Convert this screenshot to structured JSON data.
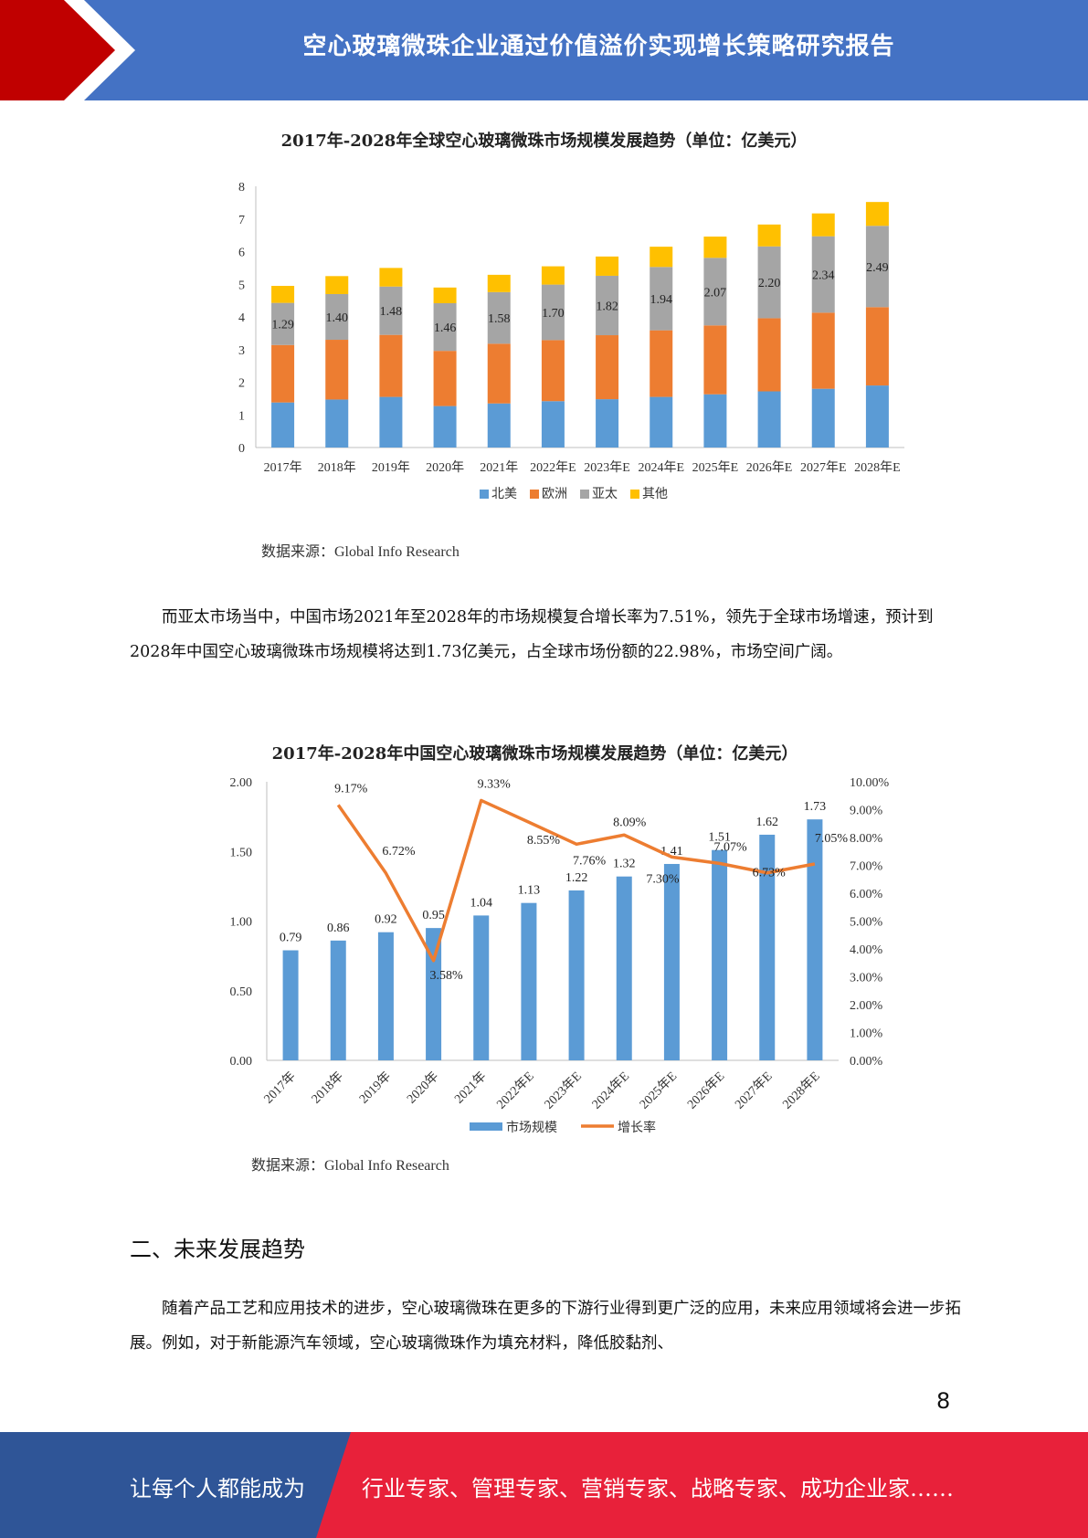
{
  "header": {
    "title": "空心玻璃微珠企业通过价值溢价实现增长策略研究报告"
  },
  "chart1": {
    "title": "2017年-2028年全球空心玻璃微珠市场规模发展趋势（单位：亿美元）",
    "source": "数据来源：Global Info Research"
  },
  "paragraph1": "而亚太市场当中，中国市场2021年至2028年的市场规模复合增长率为7.51%，领先于全球市场增速，预计到2028年中国空心玻璃微珠市场规模将达到1.73亿美元，占全球市场份额的22.98%，市场空间广阔。",
  "chart2": {
    "title": "2017年-2028年中国空心玻璃微珠市场规模发展趋势（单位：亿美元）",
    "source": "数据来源：Global Info Research"
  },
  "section": {
    "heading": "二、未来发展趋势"
  },
  "paragraph2": "随着产品工艺和应用技术的进步，空心玻璃微珠在更多的下游行业得到更广泛的应用，未来应用领域将会进一步拓展。例如，对于新能源汽车领域，空心玻璃微珠作为填充材料，降低胶黏剂、",
  "page_number": "8",
  "footer": {
    "left": "让每个人都能成为",
    "right": "行业专家、管理专家、营销专家、战略专家、成功企业家……"
  },
  "colors": {
    "header_blue": "#4472C4",
    "brand_red": "#C00000",
    "footer_blue": "#2F5597",
    "footer_red": "#E8213A",
    "north_america": "#5B9BD5",
    "europe": "#ED7D31",
    "asia_pacific": "#A5A5A5",
    "other": "#FFC000"
  },
  "chart_data": [
    {
      "type": "bar",
      "stacked": true,
      "categories": [
        "2017年",
        "2018年",
        "2019年",
        "2020年",
        "2021年",
        "2022年E",
        "2023年E",
        "2024年E",
        "2025年E",
        "2026年E",
        "2027年E",
        "2028年E"
      ],
      "series": [
        {
          "name": "北美",
          "values": [
            1.38,
            1.47,
            1.55,
            1.27,
            1.35,
            1.42,
            1.48,
            1.55,
            1.63,
            1.72,
            1.8,
            1.9
          ]
        },
        {
          "name": "欧洲",
          "values": [
            1.76,
            1.83,
            1.9,
            1.69,
            1.83,
            1.87,
            1.96,
            2.04,
            2.11,
            2.24,
            2.33,
            2.4
          ]
        },
        {
          "name": "亚太",
          "values": [
            1.29,
            1.4,
            1.48,
            1.46,
            1.58,
            1.7,
            1.82,
            1.94,
            2.07,
            2.2,
            2.34,
            2.49
          ]
        },
        {
          "name": "其他",
          "values": [
            0.52,
            0.55,
            0.57,
            0.48,
            0.53,
            0.56,
            0.59,
            0.62,
            0.65,
            0.67,
            0.7,
            0.73
          ]
        }
      ],
      "data_labels_series": "亚太",
      "ylim": [
        0,
        8
      ],
      "yticks": [
        0,
        1,
        2,
        3,
        4,
        5,
        6,
        7,
        8
      ],
      "grid": false,
      "legend": "bottom"
    },
    {
      "type": "bar",
      "categories": [
        "2017年",
        "2018年",
        "2019年",
        "2020年",
        "2021年",
        "2022年E",
        "2023年E",
        "2024年E",
        "2025年E",
        "2026年E",
        "2027年E",
        "2028年E"
      ],
      "series": [
        {
          "name": "市场规模",
          "type": "bar",
          "axis": "left",
          "values": [
            0.79,
            0.86,
            0.92,
            0.95,
            1.04,
            1.13,
            1.22,
            1.32,
            1.41,
            1.51,
            1.62,
            1.73
          ],
          "labels": [
            "0.79",
            "0.86",
            "0.92",
            "0.95",
            "1.04",
            "1.13",
            "1.22",
            "1.32",
            "1.41",
            "1.51",
            "1.62",
            "1.73"
          ]
        },
        {
          "name": "增长率",
          "type": "line",
          "axis": "right",
          "values": [
            null,
            9.17,
            6.72,
            3.58,
            9.33,
            8.55,
            7.76,
            8.09,
            7.3,
            7.07,
            6.73,
            7.05
          ],
          "labels": [
            "",
            "9.17%",
            "6.72%",
            "3.58%",
            "9.33%",
            "8.55%",
            "7.76%",
            "8.09%",
            "7.30%",
            "7.07%",
            "6.73%",
            "7.05%"
          ]
        }
      ],
      "ylim_left": [
        0,
        2
      ],
      "yticks_left": [
        "0.00",
        "0.50",
        "1.00",
        "1.50",
        "2.00"
      ],
      "ylim_right": [
        0,
        10
      ],
      "yticks_right": [
        "0.00%",
        "1.00%",
        "2.00%",
        "3.00%",
        "4.00%",
        "5.00%",
        "6.00%",
        "7.00%",
        "8.00%",
        "9.00%",
        "10.00%"
      ],
      "grid": false,
      "legend": "bottom"
    }
  ]
}
